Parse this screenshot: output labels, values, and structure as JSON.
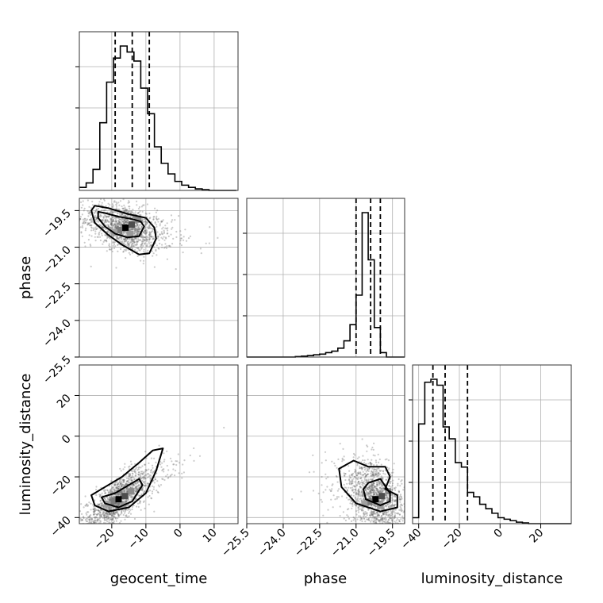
{
  "chart_data": {
    "type": "corner",
    "parameters": [
      "geocent_time",
      "phase",
      "luminosity_distance"
    ],
    "axis_labels": {
      "x": [
        "geocent_time",
        "phase",
        "luminosity_distance"
      ],
      "y": [
        "phase",
        "luminosity_distance"
      ]
    },
    "ranges": {
      "geocent_time": [
        -29.5,
        17
      ],
      "phase": [
        -25.5,
        -19
      ],
      "luminosity_distance": [
        -43,
        35
      ]
    },
    "ticks": {
      "geocent_time": [
        -20,
        -10,
        0,
        10
      ],
      "phase_x": [
        -25.5,
        -24.0,
        -22.5,
        -21.0,
        -19.5
      ],
      "phase_y": [
        -19.5,
        -21.0,
        -22.5,
        -24.0,
        -25.5
      ],
      "luminosity_distance_x": [
        -40,
        -20,
        0,
        20
      ],
      "luminosity_distance_y": [
        20,
        0,
        -20,
        -40
      ]
    },
    "tick_labels": {
      "geocent_time": [
        "−20",
        "−10",
        "0",
        "10"
      ],
      "phase_x": [
        "−25.5",
        "−24.0",
        "−22.5",
        "−21.0",
        "−19.5"
      ],
      "phase_y": [
        "−19.5",
        "−21.0",
        "−22.5",
        "−24.0",
        "−25.5"
      ],
      "luminosity_distance_x": [
        "−40",
        "−20",
        "0",
        "20"
      ],
      "luminosity_distance_y": [
        "20",
        "0",
        "−20",
        "−40"
      ]
    },
    "quantiles": {
      "geocent_time": [
        -19,
        -14,
        -9
      ],
      "phase": [
        -21.0,
        -20.4,
        -20.0
      ],
      "luminosity_distance": [
        -33,
        -27,
        -16
      ]
    },
    "histograms": {
      "geocent_time": {
        "bin_edges": [
          -29.5,
          -27.5,
          -25.5,
          -23.5,
          -21.5,
          -19.5,
          -17.5,
          -15.5,
          -13.5,
          -11.5,
          -9.5,
          -7.5,
          -5.5,
          -3.5,
          -1.5,
          0.5,
          2.5,
          4.5,
          6.5,
          8.5,
          10.5,
          12.5,
          14.5,
          16.5
        ],
        "counts": [
          0.02,
          0.05,
          0.14,
          0.45,
          0.72,
          0.88,
          0.96,
          0.92,
          0.86,
          0.68,
          0.51,
          0.29,
          0.18,
          0.11,
          0.06,
          0.035,
          0.02,
          0.01,
          0.005,
          0,
          0,
          0,
          0
        ]
      },
      "phase": {
        "bin_edges": [
          -25.5,
          -25.25,
          -25.0,
          -24.75,
          -24.5,
          -24.25,
          -24.0,
          -23.75,
          -23.5,
          -23.25,
          -23.0,
          -22.75,
          -22.5,
          -22.25,
          -22.0,
          -21.75,
          -21.5,
          -21.25,
          -21.0,
          -20.75,
          -20.5,
          -20.25,
          -20.0,
          -19.75,
          -19.5,
          -19.25,
          -19.0
        ],
        "counts": [
          0,
          0,
          0,
          0,
          0,
          0,
          0,
          0,
          0.003,
          0.006,
          0.01,
          0.015,
          0.02,
          0.03,
          0.04,
          0.06,
          0.11,
          0.22,
          0.42,
          0.98,
          0.66,
          0.2,
          0.03,
          0,
          0,
          0
        ]
      },
      "luminosity_distance": {
        "bin_edges": [
          -43,
          -40,
          -37,
          -34,
          -31,
          -28,
          -25,
          -22,
          -19,
          -16,
          -13,
          -10,
          -7,
          -4,
          -1,
          2,
          5,
          8,
          11,
          14,
          17,
          20,
          23,
          26,
          29,
          32,
          35
        ],
        "counts": [
          0.04,
          0.67,
          0.95,
          0.97,
          0.93,
          0.65,
          0.57,
          0.41,
          0.38,
          0.21,
          0.18,
          0.13,
          0.1,
          0.07,
          0.04,
          0.03,
          0.02,
          0.01,
          0.005,
          0,
          0,
          0,
          0,
          0,
          0,
          0
        ]
      }
    },
    "bivariate": [
      {
        "x": "geocent_time",
        "y": "phase",
        "mode": [
          -16,
          -20.2
        ],
        "cov": [
          [
            22,
            -0.9
          ],
          [
            -0.9,
            0.24
          ]
        ],
        "contours_1sigma": [
          [
            -24,
            -19.8
          ],
          [
            -22,
            -20.15
          ],
          [
            -19,
            -20.45
          ],
          [
            -15.5,
            -20.6
          ],
          [
            -12,
            -20.55
          ],
          [
            -10.5,
            -20.15
          ],
          [
            -11.5,
            -19.95
          ],
          [
            -14,
            -19.85
          ],
          [
            -18,
            -19.75
          ],
          [
            -22,
            -19.6
          ],
          [
            -24,
            -19.55
          ]
        ],
        "contours_2sigma": [
          [
            -26,
            -19.5
          ],
          [
            -25,
            -20.0
          ],
          [
            -21,
            -20.5
          ],
          [
            -17,
            -20.9
          ],
          [
            -12,
            -21.3
          ],
          [
            -9,
            -21.25
          ],
          [
            -7,
            -20.65
          ],
          [
            -7.5,
            -20.2
          ],
          [
            -10,
            -19.8
          ],
          [
            -15,
            -19.65
          ],
          [
            -21,
            -19.4
          ],
          [
            -25,
            -19.3
          ]
        ]
      },
      {
        "x": "geocent_time",
        "y": "luminosity_distance",
        "mode": [
          -18,
          -31
        ],
        "cov": [
          [
            20,
            30
          ],
          [
            30,
            70
          ]
        ],
        "contours_1sigma": [
          [
            -23,
            -30
          ],
          [
            -22,
            -33
          ],
          [
            -18,
            -35
          ],
          [
            -14,
            -32
          ],
          [
            -11,
            -24
          ],
          [
            -12,
            -21
          ],
          [
            -15,
            -24
          ],
          [
            -19,
            -28
          ]
        ],
        "contours_2sigma": [
          [
            -26,
            -29
          ],
          [
            -25,
            -34
          ],
          [
            -21,
            -37
          ],
          [
            -15,
            -35
          ],
          [
            -10,
            -28
          ],
          [
            -7,
            -17
          ],
          [
            -5,
            -6
          ],
          [
            -8,
            -7
          ],
          [
            -12,
            -13
          ],
          [
            -17,
            -20
          ],
          [
            -22,
            -25
          ]
        ]
      },
      {
        "x": "phase",
        "y": "luminosity_distance",
        "mode": [
          -20.2,
          -31
        ],
        "cov": [
          [
            0.25,
            -1.8
          ],
          [
            -1.8,
            90
          ]
        ],
        "contours_1sigma": [
          [
            -20.7,
            -26
          ],
          [
            -20.6,
            -31
          ],
          [
            -20.0,
            -34
          ],
          [
            -19.6,
            -32
          ],
          [
            -19.6,
            -28
          ],
          [
            -20.0,
            -21
          ],
          [
            -20.5,
            -23
          ]
        ],
        "contours_2sigma": [
          [
            -21.7,
            -16
          ],
          [
            -21.6,
            -25
          ],
          [
            -21.0,
            -33
          ],
          [
            -20.0,
            -37
          ],
          [
            -19.3,
            -35
          ],
          [
            -19.3,
            -29
          ],
          [
            -19.8,
            -26
          ],
          [
            -19.6,
            -20
          ],
          [
            -19.8,
            -15
          ],
          [
            -20.5,
            -15
          ],
          [
            -21.1,
            -12
          ]
        ]
      }
    ],
    "grid": true,
    "colors": {
      "line": "#000000",
      "grid": "#b0b0b0",
      "frame": "#333333",
      "scatter": "#6a6a6a"
    }
  }
}
